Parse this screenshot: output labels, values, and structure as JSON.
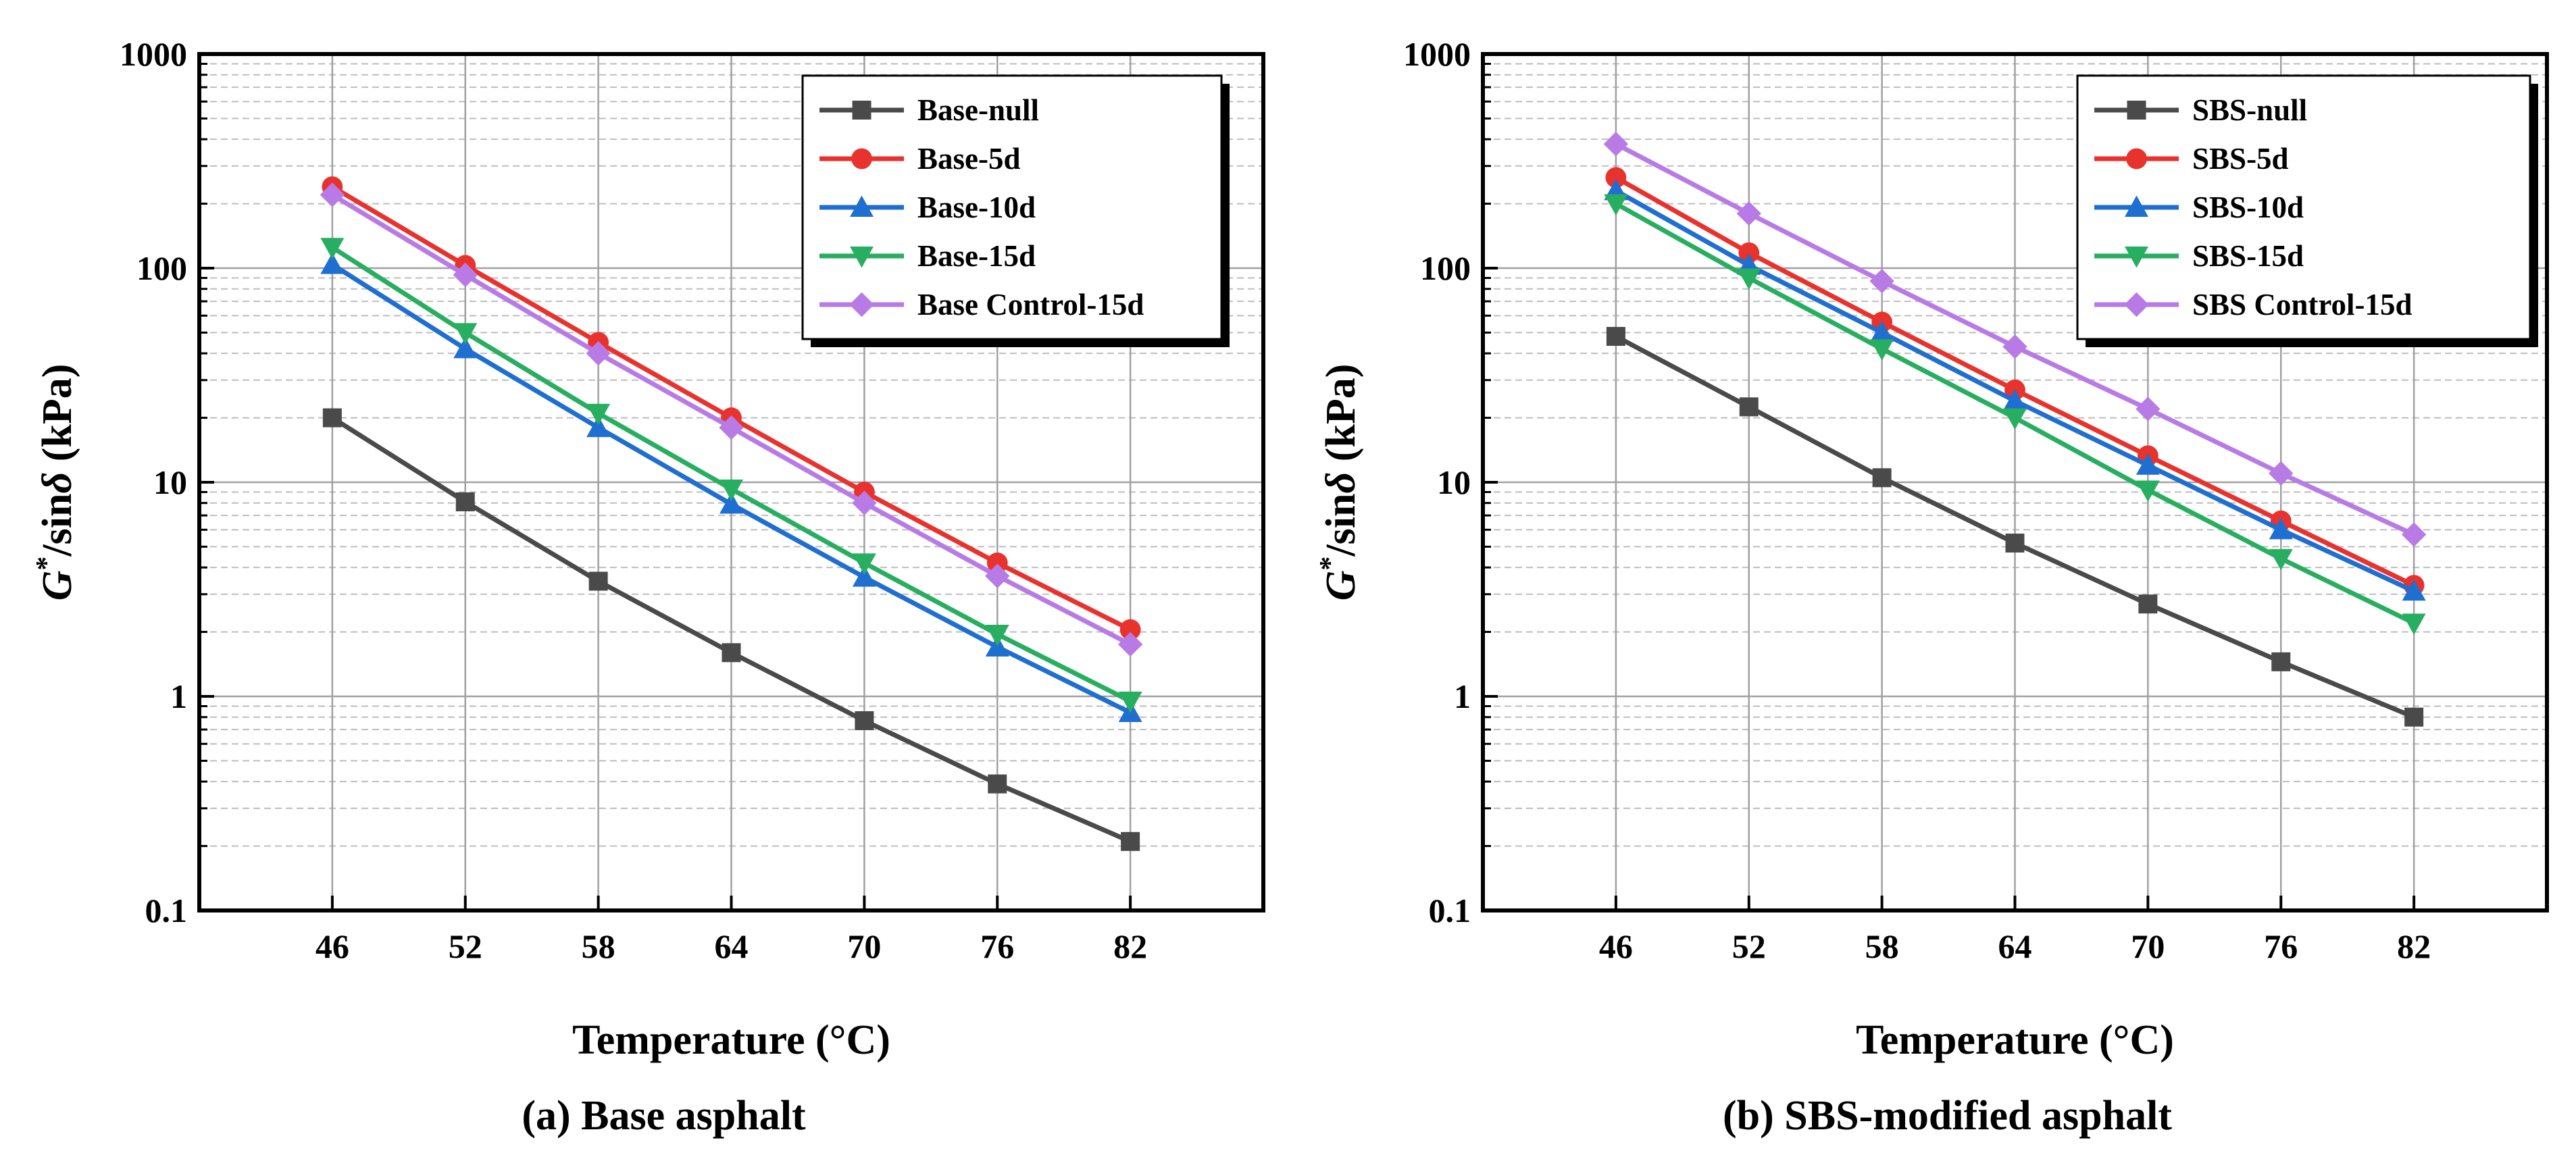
{
  "chart_data": [
    {
      "type": "line",
      "caption": "(a) Base asphalt",
      "xlabel": "Temperature (°C)",
      "ylabel": {
        "g": "G",
        "star": "*",
        "rest": "/sin",
        "delta": "δ",
        "unit": " (kPa)"
      },
      "yscale": "log",
      "ylim": [
        0.1,
        1000
      ],
      "y_ticks": [
        "0.1",
        "1",
        "10",
        "100",
        "1000"
      ],
      "x": [
        46,
        52,
        58,
        64,
        70,
        76,
        82
      ],
      "x_ticks": [
        "46",
        "52",
        "58",
        "64",
        "70",
        "76",
        "82"
      ],
      "grid": true,
      "legend_position": "top-right",
      "series": [
        {
          "name": "Base-null",
          "color": "#4a4a4a",
          "marker": "square",
          "values": [
            20,
            8.1,
            3.45,
            1.6,
            0.77,
            0.39,
            0.21
          ]
        },
        {
          "name": "Base-5d",
          "color": "#e8322e",
          "marker": "circle",
          "values": [
            240,
            103,
            45,
            20,
            9,
            4.2,
            2.05
          ]
        },
        {
          "name": "Base-10d",
          "color": "#1f6fd1",
          "marker": "triangle-up",
          "values": [
            104,
            42,
            18,
            7.9,
            3.6,
            1.7,
            0.84
          ]
        },
        {
          "name": "Base-15d",
          "color": "#27ae60",
          "marker": "triangle-down",
          "values": [
            125,
            50,
            21,
            9.3,
            4.2,
            1.95,
            0.95
          ]
        },
        {
          "name": "Base Control-15d",
          "color": "#b87be6",
          "marker": "diamond",
          "values": [
            220,
            93,
            40,
            18,
            8,
            3.65,
            1.75
          ]
        }
      ]
    },
    {
      "type": "line",
      "caption": "(b) SBS-modified asphalt",
      "xlabel": "Temperature (°C)",
      "ylabel": {
        "g": "G",
        "star": "*",
        "rest": "/sin",
        "delta": "δ",
        "unit": " (kPa)"
      },
      "yscale": "log",
      "ylim": [
        0.1,
        1000
      ],
      "y_ticks": [
        "0.1",
        "1",
        "10",
        "100",
        "1000"
      ],
      "x": [
        46,
        52,
        58,
        64,
        70,
        76,
        82
      ],
      "x_ticks": [
        "46",
        "52",
        "58",
        "64",
        "70",
        "76",
        "82"
      ],
      "grid": true,
      "legend_position": "top-right",
      "series": [
        {
          "name": "SBS-null",
          "color": "#4a4a4a",
          "marker": "square",
          "values": [
            48,
            22.5,
            10.5,
            5.2,
            2.7,
            1.45,
            0.8
          ]
        },
        {
          "name": "SBS-5d",
          "color": "#e8322e",
          "marker": "circle",
          "values": [
            265,
            118,
            56,
            27,
            13.3,
            6.6,
            3.3
          ]
        },
        {
          "name": "SBS-10d",
          "color": "#1f6fd1",
          "marker": "triangle-up",
          "values": [
            230,
            103,
            50,
            24,
            12,
            6,
            3.1
          ]
        },
        {
          "name": "SBS-15d",
          "color": "#27ae60",
          "marker": "triangle-down",
          "values": [
            200,
            90,
            42,
            20,
            9.2,
            4.4,
            2.2
          ]
        },
        {
          "name": "SBS Control-15d",
          "color": "#b87be6",
          "marker": "diamond",
          "values": [
            380,
            180,
            87,
            43,
            22,
            11,
            5.7
          ]
        }
      ]
    }
  ]
}
